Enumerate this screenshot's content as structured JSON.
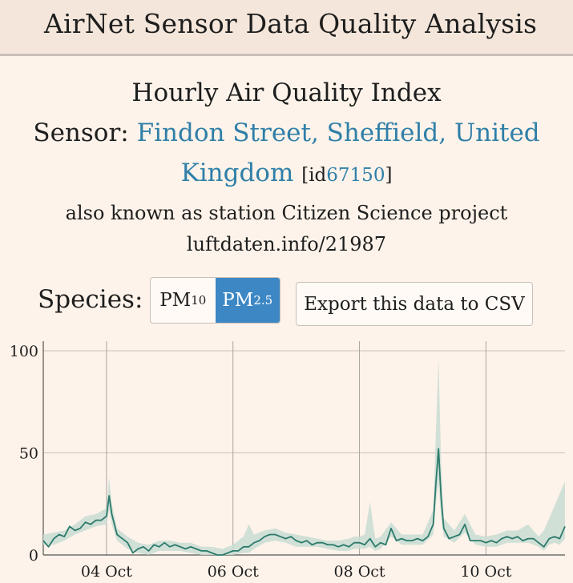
{
  "header": {
    "title": "AirNet Sensor Data Quality Analysis"
  },
  "chart_heading": "Hourly Air Quality Index",
  "sensor": {
    "prefix": "Sensor:",
    "name_line1": "Findon Street, Sheffield, United",
    "name_line2": "Kingdom",
    "id_open": "[id",
    "id": "67150",
    "id_close": "]",
    "alias_line1": "also known as station Citizen Science project",
    "alias_line2": "luftdaten.info/21987"
  },
  "species": {
    "label": "Species:",
    "options": [
      {
        "base": "PM",
        "sub": "10",
        "active": false
      },
      {
        "base": "PM",
        "sub": "2.5",
        "active": true
      }
    ]
  },
  "export_label": "Export this data to CSV",
  "colors": {
    "accent": "#3d87c4",
    "link": "#2f7fa8",
    "line": "#2b7a6a",
    "band": "#c9dcd4"
  },
  "chart_data": {
    "type": "line",
    "title": "",
    "xlabel": "",
    "ylabel": "",
    "ylim": [
      0,
      100
    ],
    "yticks": [
      0,
      50,
      100
    ],
    "grid": true,
    "x_unit": "hours since start of 03 Oct",
    "xlim": [
      0,
      198
    ],
    "xticks": [
      {
        "label": "04 Oct",
        "x": 24
      },
      {
        "label": "06 Oct",
        "x": 72
      },
      {
        "label": "08 Oct",
        "x": 120
      },
      {
        "label": "10 Oct",
        "x": 168
      }
    ],
    "series": [
      {
        "values": [
          [
            0,
            7
          ],
          [
            2,
            4
          ],
          [
            4,
            8
          ],
          [
            6,
            10
          ],
          [
            8,
            9
          ],
          [
            10,
            14
          ],
          [
            12,
            12
          ],
          [
            14,
            13
          ],
          [
            16,
            16
          ],
          [
            18,
            15
          ],
          [
            20,
            17
          ],
          [
            22,
            17
          ],
          [
            24,
            19
          ],
          [
            25,
            29
          ],
          [
            26,
            20
          ],
          [
            28,
            10
          ],
          [
            30,
            8
          ],
          [
            32,
            6
          ],
          [
            34,
            1
          ],
          [
            36,
            3
          ],
          [
            38,
            4
          ],
          [
            40,
            2
          ],
          [
            42,
            5
          ],
          [
            44,
            4
          ],
          [
            46,
            6
          ],
          [
            48,
            4
          ],
          [
            50,
            5
          ],
          [
            52,
            4
          ],
          [
            54,
            3
          ],
          [
            56,
            4
          ],
          [
            58,
            3
          ],
          [
            60,
            2
          ],
          [
            62,
            2
          ],
          [
            64,
            1
          ],
          [
            66,
            0
          ],
          [
            68,
            0
          ],
          [
            70,
            1
          ],
          [
            72,
            2
          ],
          [
            74,
            2
          ],
          [
            76,
            4
          ],
          [
            78,
            4
          ],
          [
            80,
            6
          ],
          [
            82,
            7
          ],
          [
            84,
            9
          ],
          [
            86,
            10
          ],
          [
            88,
            10
          ],
          [
            90,
            9
          ],
          [
            92,
            8
          ],
          [
            94,
            9
          ],
          [
            96,
            7
          ],
          [
            98,
            6
          ],
          [
            100,
            7
          ],
          [
            102,
            5
          ],
          [
            104,
            6
          ],
          [
            106,
            6
          ],
          [
            108,
            5
          ],
          [
            110,
            5
          ],
          [
            112,
            4
          ],
          [
            114,
            5
          ],
          [
            116,
            4
          ],
          [
            118,
            6
          ],
          [
            120,
            6
          ],
          [
            122,
            5
          ],
          [
            124,
            8
          ],
          [
            126,
            4
          ],
          [
            128,
            6
          ],
          [
            130,
            5
          ],
          [
            132,
            13
          ],
          [
            134,
            7
          ],
          [
            136,
            8
          ],
          [
            138,
            7
          ],
          [
            140,
            7
          ],
          [
            142,
            8
          ],
          [
            144,
            7
          ],
          [
            146,
            9
          ],
          [
            148,
            15
          ],
          [
            149,
            35
          ],
          [
            150,
            52
          ],
          [
            151,
            28
          ],
          [
            152,
            13
          ],
          [
            154,
            8
          ],
          [
            156,
            9
          ],
          [
            158,
            10
          ],
          [
            160,
            15
          ],
          [
            162,
            7
          ],
          [
            164,
            7
          ],
          [
            166,
            7
          ],
          [
            168,
            6
          ],
          [
            170,
            7
          ],
          [
            172,
            6
          ],
          [
            174,
            8
          ],
          [
            176,
            9
          ],
          [
            178,
            8
          ],
          [
            180,
            9
          ],
          [
            182,
            7
          ],
          [
            184,
            8
          ],
          [
            186,
            8
          ],
          [
            188,
            6
          ],
          [
            190,
            4
          ],
          [
            192,
            8
          ],
          [
            194,
            9
          ],
          [
            196,
            8
          ],
          [
            198,
            14
          ]
        ],
        "band": [
          [
            0,
            5,
            10
          ],
          [
            4,
            5,
            11
          ],
          [
            8,
            7,
            12
          ],
          [
            12,
            10,
            15
          ],
          [
            16,
            12,
            19
          ],
          [
            20,
            14,
            20
          ],
          [
            24,
            15,
            23
          ],
          [
            25,
            22,
            38
          ],
          [
            26,
            15,
            25
          ],
          [
            28,
            7,
            13
          ],
          [
            32,
            3,
            9
          ],
          [
            36,
            1,
            6
          ],
          [
            40,
            0,
            5
          ],
          [
            44,
            2,
            7
          ],
          [
            48,
            2,
            7
          ],
          [
            52,
            2,
            6
          ],
          [
            56,
            1,
            6
          ],
          [
            60,
            0,
            4
          ],
          [
            64,
            0,
            4
          ],
          [
            68,
            0,
            3
          ],
          [
            72,
            0,
            5
          ],
          [
            76,
            1,
            9
          ],
          [
            78,
            1,
            15
          ],
          [
            80,
            3,
            10
          ],
          [
            84,
            6,
            12
          ],
          [
            88,
            7,
            13
          ],
          [
            92,
            6,
            11
          ],
          [
            96,
            4,
            10
          ],
          [
            100,
            4,
            9
          ],
          [
            104,
            4,
            8
          ],
          [
            108,
            3,
            7
          ],
          [
            112,
            2,
            7
          ],
          [
            116,
            2,
            8
          ],
          [
            118,
            3,
            9
          ],
          [
            120,
            3,
            9
          ],
          [
            122,
            3,
            10
          ],
          [
            124,
            4,
            26
          ],
          [
            126,
            2,
            8
          ],
          [
            128,
            3,
            9
          ],
          [
            132,
            9,
            16
          ],
          [
            136,
            5,
            10
          ],
          [
            140,
            5,
            10
          ],
          [
            144,
            5,
            10
          ],
          [
            148,
            10,
            22
          ],
          [
            149,
            25,
            60
          ],
          [
            150,
            35,
            96
          ],
          [
            151,
            18,
            45
          ],
          [
            152,
            9,
            18
          ],
          [
            156,
            6,
            12
          ],
          [
            160,
            11,
            20
          ],
          [
            164,
            5,
            10
          ],
          [
            168,
            4,
            9
          ],
          [
            172,
            4,
            10
          ],
          [
            176,
            6,
            12
          ],
          [
            180,
            6,
            12
          ],
          [
            184,
            6,
            15
          ],
          [
            188,
            4,
            9
          ],
          [
            190,
            2,
            12
          ],
          [
            192,
            5,
            18
          ],
          [
            194,
            6,
            24
          ],
          [
            196,
            5,
            30
          ],
          [
            198,
            8,
            36
          ]
        ]
      }
    ]
  }
}
